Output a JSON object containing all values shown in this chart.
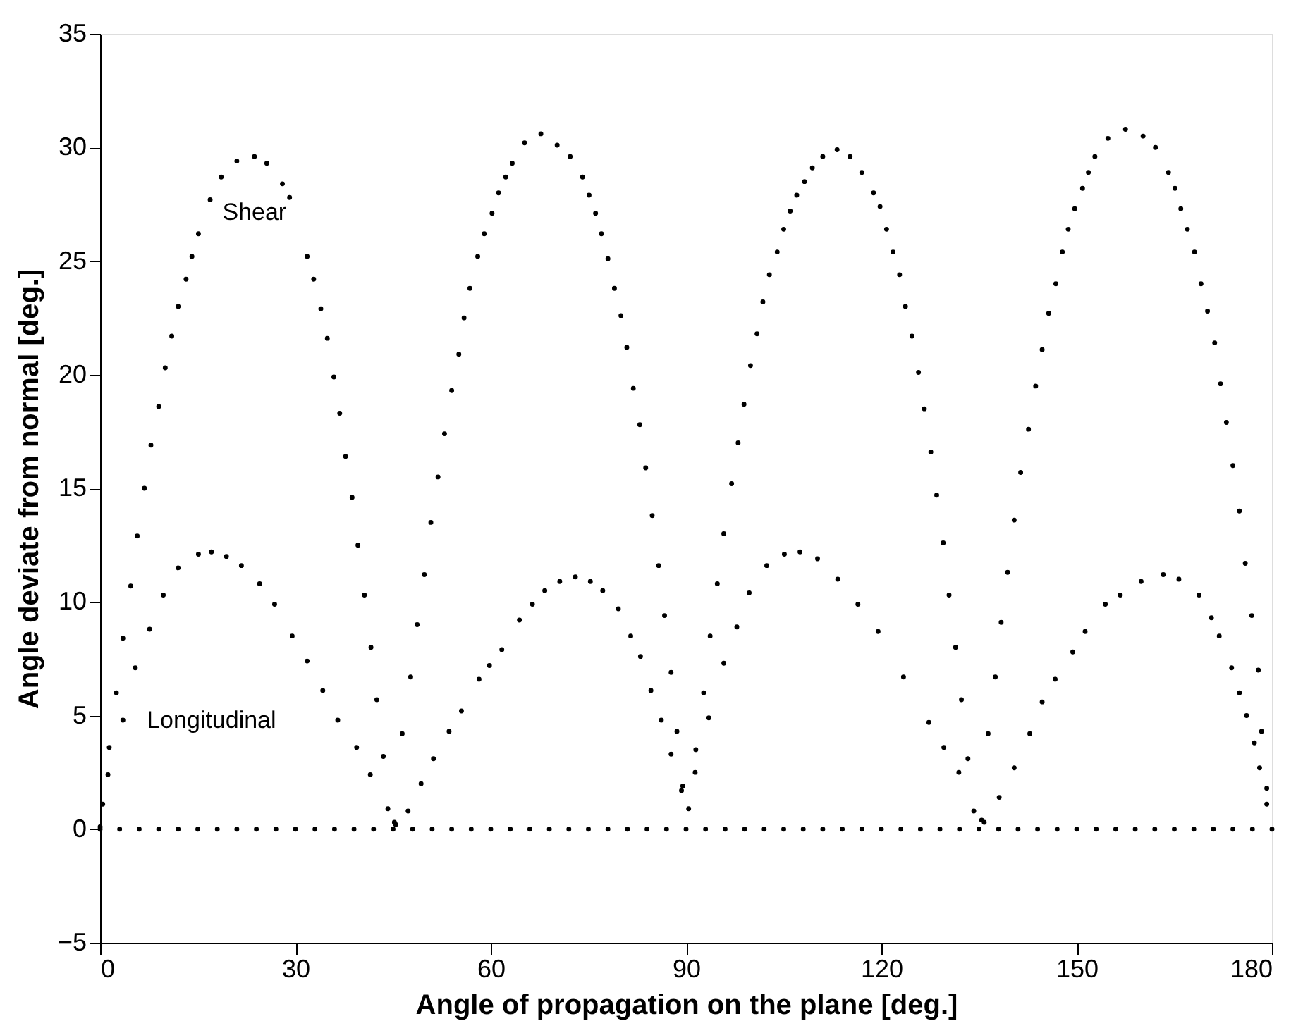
{
  "chart_data": {
    "type": "scatter",
    "xlabel": "Angle of propagation on the plane [deg.]",
    "ylabel": "Angle deviate from normal [deg.]",
    "xlim": [
      0,
      180
    ],
    "ylim": [
      -5,
      35
    ],
    "xticks": [
      0,
      30,
      60,
      90,
      120,
      150,
      180
    ],
    "yticks": [
      -5,
      0,
      5,
      10,
      15,
      20,
      25,
      30,
      35
    ],
    "grid": false,
    "marker": "circle",
    "series": [
      {
        "name": "Shear",
        "color": "#000000",
        "x": [
          0.4,
          1.4,
          2.5,
          3.5,
          4.7,
          5.7,
          6.8,
          7.8,
          9.0,
          10.0,
          11.0,
          12.0,
          13.2,
          14.1,
          15.1,
          16.9,
          18.6,
          21.0,
          23.7,
          25.6,
          28.0,
          29.1,
          31.8,
          32.8,
          33.9,
          34.9,
          35.9,
          36.8,
          37.7,
          38.7,
          39.6,
          40.6,
          41.6,
          42.5,
          43.5,
          45.2,
          46.4,
          47.7,
          48.7,
          49.8,
          50.8,
          51.9,
          52.9,
          54.0,
          55.1,
          55.9,
          56.8,
          58.0,
          59.0,
          60.2,
          61.2,
          62.3,
          63.3,
          65.2,
          67.7,
          70.2,
          72.2,
          74.1,
          75.1,
          76.1,
          77.0,
          78.0,
          79.0,
          80.0,
          80.9,
          81.9,
          82.9,
          83.8,
          84.8,
          85.8,
          86.7,
          87.7,
          88.6,
          89.5,
          91.5,
          92.7,
          93.7,
          94.8,
          95.8,
          97.0,
          98.0,
          98.9,
          99.9,
          100.9,
          101.8,
          102.8,
          104.0,
          105.0,
          106.0,
          107.0,
          108.2,
          109.4,
          111.0,
          113.2,
          115.2,
          117.0,
          118.8,
          119.8,
          120.8,
          121.8,
          122.8,
          123.7,
          124.7,
          125.7,
          126.6,
          127.6,
          128.5,
          129.5,
          130.4,
          131.4,
          132.3,
          133.3,
          135.4,
          136.4,
          137.5,
          138.4,
          139.4,
          140.4,
          141.4,
          142.6,
          143.7,
          144.7,
          145.7,
          146.8,
          147.8,
          148.7,
          149.7,
          150.9,
          151.8,
          152.8,
          154.8,
          157.5,
          160.2,
          162.1,
          164.1,
          165.1,
          166.0,
          167.0,
          168.1,
          169.1,
          170.1,
          171.2,
          172.1,
          173.0,
          174.0,
          175.0,
          175.9,
          176.9,
          177.9,
          178.4,
          179.2
        ],
        "values": [
          1.1,
          3.6,
          6.0,
          8.4,
          10.7,
          12.9,
          15.0,
          16.9,
          18.6,
          20.3,
          21.7,
          23.0,
          24.2,
          25.2,
          26.2,
          27.7,
          28.7,
          29.4,
          29.6,
          29.3,
          28.4,
          27.8,
          25.2,
          24.2,
          22.9,
          21.6,
          19.9,
          18.3,
          16.4,
          14.6,
          12.5,
          10.3,
          8.0,
          5.7,
          3.2,
          0.3,
          4.2,
          6.7,
          9.0,
          11.2,
          13.5,
          15.5,
          17.4,
          19.3,
          20.9,
          22.5,
          23.8,
          25.2,
          26.2,
          27.1,
          28.0,
          28.7,
          29.3,
          30.2,
          30.6,
          30.1,
          29.6,
          28.7,
          27.9,
          27.1,
          26.2,
          25.1,
          23.8,
          22.6,
          21.2,
          19.4,
          17.8,
          15.9,
          13.8,
          11.6,
          9.4,
          6.9,
          4.3,
          1.9,
          3.5,
          6.0,
          8.5,
          10.8,
          13.0,
          15.2,
          17.0,
          18.7,
          20.4,
          21.8,
          23.2,
          24.4,
          25.4,
          26.4,
          27.2,
          27.9,
          28.5,
          29.1,
          29.6,
          29.9,
          29.6,
          28.9,
          28.0,
          27.4,
          26.4,
          25.4,
          24.4,
          23.0,
          21.7,
          20.1,
          18.5,
          16.6,
          14.7,
          12.6,
          10.3,
          8.0,
          5.7,
          3.1,
          0.4,
          4.2,
          6.7,
          9.1,
          11.3,
          13.6,
          15.7,
          17.6,
          19.5,
          21.1,
          22.7,
          24.0,
          25.4,
          26.4,
          27.3,
          28.2,
          28.9,
          29.6,
          30.4,
          30.8,
          30.5,
          30.0,
          28.9,
          28.2,
          27.3,
          26.4,
          25.4,
          24.0,
          22.8,
          21.4,
          19.6,
          17.9,
          16.0,
          14.0,
          11.7,
          9.4,
          7.0,
          4.3,
          1.8
        ]
      },
      {
        "name": "Longitudinal",
        "color": "#000000",
        "x": [
          0,
          1.2,
          3.5,
          5.4,
          7.6,
          9.7,
          12.0,
          15.1,
          17.1,
          19.4,
          21.7,
          24.5,
          26.8,
          29.5,
          31.8,
          34.2,
          36.5,
          39.4,
          41.5,
          44.2,
          45.4,
          47.3,
          49.3,
          51.2,
          53.6,
          55.5,
          58.2,
          59.8,
          61.7,
          64.4,
          66.4,
          68.3,
          70.6,
          73.0,
          75.3,
          77.2,
          79.6,
          81.5,
          83.0,
          84.6,
          86.2,
          87.7,
          89.3,
          90.4,
          91.4,
          93.5,
          95.8,
          97.8,
          99.7,
          102.4,
          105.1,
          107.5,
          110.2,
          113.3,
          116.4,
          119.5,
          123.4,
          127.3,
          129.6,
          131.9,
          134.2,
          135.8,
          138.1,
          140.4,
          142.8,
          144.7,
          146.7,
          149.4,
          151.3,
          154.4,
          156.7,
          159.9,
          163.3,
          165.7,
          168.8,
          170.7,
          171.9,
          173.8,
          175.0,
          176.1,
          177.3,
          178.1,
          179.2
        ],
        "values": [
          0.1,
          2.4,
          4.8,
          7.1,
          8.8,
          10.3,
          11.5,
          12.1,
          12.2,
          12.0,
          11.6,
          10.8,
          9.9,
          8.5,
          7.4,
          6.1,
          4.8,
          3.6,
          2.4,
          0.9,
          0.2,
          0.8,
          2.0,
          3.1,
          4.3,
          5.2,
          6.6,
          7.2,
          7.9,
          9.2,
          9.9,
          10.5,
          10.9,
          11.1,
          10.9,
          10.5,
          9.7,
          8.5,
          7.6,
          6.1,
          4.8,
          3.3,
          1.7,
          0.9,
          2.5,
          4.9,
          7.3,
          8.9,
          10.4,
          11.6,
          12.1,
          12.2,
          11.9,
          11.0,
          9.9,
          8.7,
          6.7,
          4.7,
          3.6,
          2.5,
          0.8,
          0.3,
          1.4,
          2.7,
          4.2,
          5.6,
          6.6,
          7.8,
          8.7,
          9.9,
          10.3,
          10.9,
          11.2,
          11.0,
          10.3,
          9.3,
          8.5,
          7.1,
          6.0,
          5.0,
          3.8,
          2.7,
          1.1
        ]
      },
      {
        "color": "#000000",
        "x": [
          0,
          3,
          6,
          9,
          12,
          15,
          18,
          21,
          24,
          27,
          30,
          33,
          36,
          39,
          42,
          45,
          48,
          51,
          54,
          57,
          60,
          63,
          66,
          69,
          72,
          75,
          78,
          81,
          84,
          87,
          90,
          93,
          96,
          99,
          102,
          105,
          108,
          111,
          114,
          117,
          120,
          123,
          126,
          129,
          132,
          135,
          138,
          141,
          144,
          147,
          150,
          153,
          156,
          159,
          162,
          165,
          168,
          171,
          174,
          177,
          180
        ],
        "values": [
          0,
          0,
          0,
          0,
          0,
          0,
          0,
          0,
          0,
          0,
          0,
          0,
          0,
          0,
          0,
          0,
          0,
          0,
          0,
          0,
          0,
          0,
          0,
          0,
          0,
          0,
          0,
          0,
          0,
          0,
          0,
          0,
          0,
          0,
          0,
          0,
          0,
          0,
          0,
          0,
          0,
          0,
          0,
          0,
          0,
          0,
          0,
          0,
          0,
          0,
          0,
          0,
          0,
          0,
          0,
          0,
          0,
          0,
          0,
          0,
          0
        ]
      }
    ]
  }
}
